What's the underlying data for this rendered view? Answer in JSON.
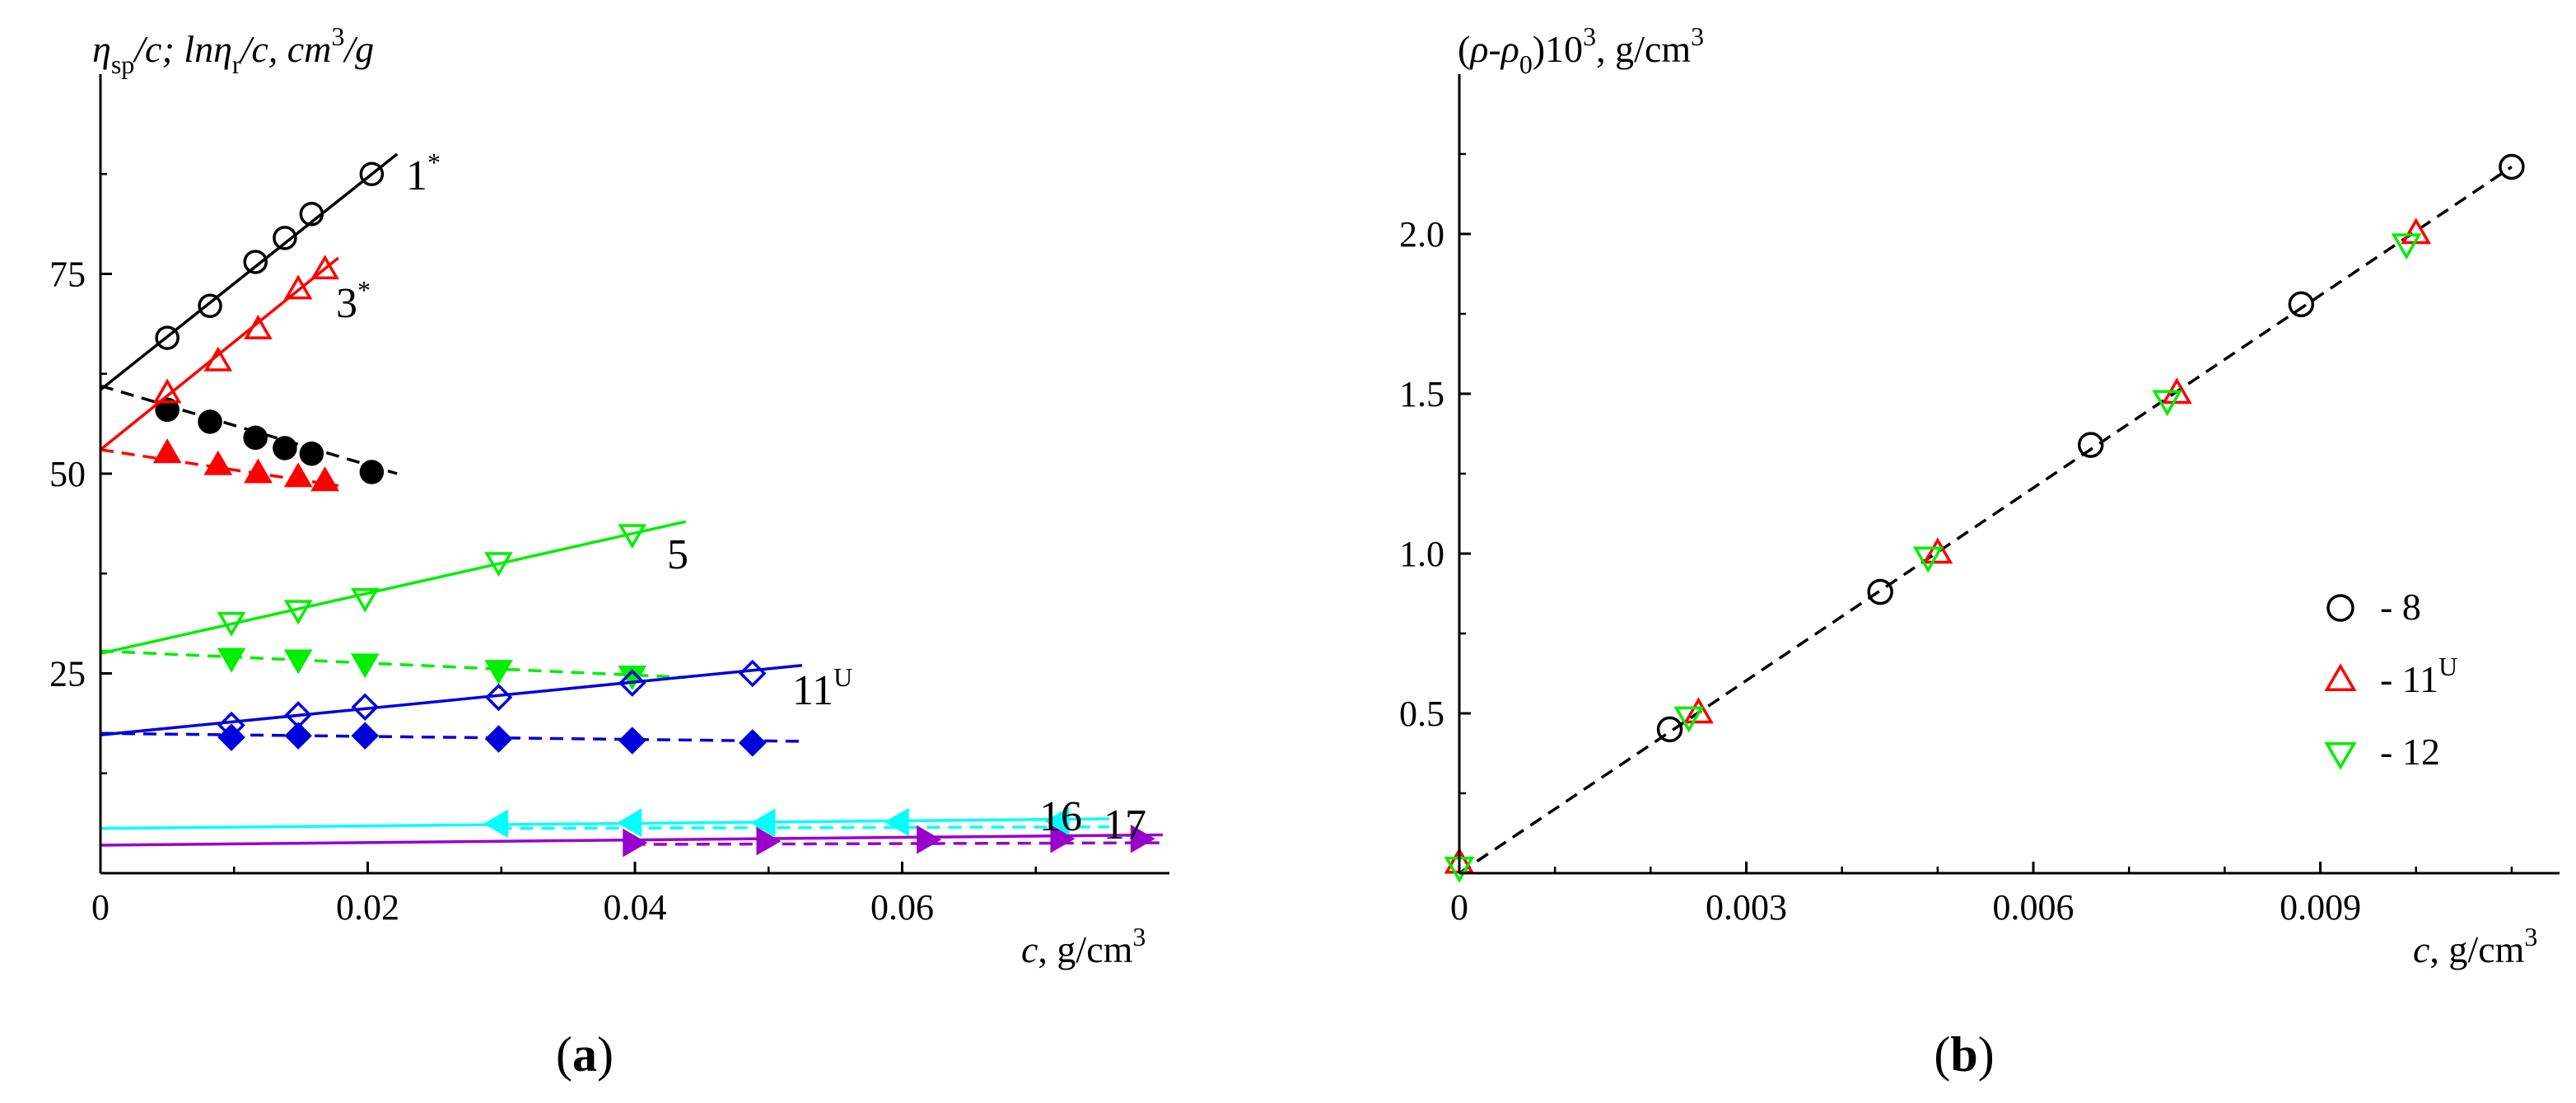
{
  "chart_data": [
    {
      "type": "scatter",
      "panel": "a",
      "panel_label": "(a)",
      "panel_label_parts": [
        "(",
        "a",
        ")"
      ],
      "ylabel": "ηsp/c; lnηr/c, cm3/g",
      "ylabel_parts": {
        "eta1": "η",
        "sp": "sp",
        "mid": "/c; ln",
        "eta2": "η",
        "r": "r",
        "tail": "/c, cm",
        "exp": "3",
        "end": "/g"
      },
      "xlabel": "c, g/cm3",
      "xlabel_parts": {
        "c": "c",
        "unit": ", g/cm",
        "exp": "3"
      },
      "xlim": [
        0,
        0.08
      ],
      "ylim": [
        0,
        100
      ],
      "xticks": [
        0,
        0.02,
        0.04,
        0.06
      ],
      "xtick_labels": [
        "0",
        "0.02",
        "0.04",
        "0.06"
      ],
      "yticks": [
        25,
        50,
        75
      ],
      "ytick_labels": [
        "25",
        "50",
        "75"
      ],
      "series": [
        {
          "name": "1*",
          "label_main": "1",
          "label_sup": "*",
          "kind": "eta_sp",
          "color": "#000000",
          "marker": "circle",
          "filled": false,
          "line": "solid",
          "x": [
            0.005,
            0.0082,
            0.0116,
            0.0138,
            0.0158,
            0.0203
          ],
          "y": [
            67,
            71,
            76.5,
            79.5,
            82.5,
            87.5
          ],
          "fit_x": [
            0,
            0.0222
          ],
          "fit_y": [
            60.5,
            90
          ]
        },
        {
          "name": "1* ln",
          "kind": "ln",
          "color": "#000000",
          "marker": "circle",
          "filled": true,
          "line": "dashed",
          "x": [
            0.005,
            0.0082,
            0.0116,
            0.0138,
            0.0158,
            0.0203
          ],
          "y": [
            58,
            56.5,
            54.5,
            53.2,
            52.5,
            50.2
          ],
          "fit_x": [
            0,
            0.0222
          ],
          "fit_y": [
            61,
            50
          ]
        },
        {
          "name": "3*",
          "label_main": "3",
          "label_sup": "*",
          "kind": "eta_sp",
          "color": "#ff0000",
          "marker": "triangle-up",
          "filled": false,
          "line": "solid",
          "x": [
            0.005,
            0.0088,
            0.0118,
            0.0148,
            0.0168
          ],
          "y": [
            60,
            64,
            68,
            73,
            75.5
          ],
          "fit_x": [
            0,
            0.0178
          ],
          "fit_y": [
            53,
            77
          ]
        },
        {
          "name": "3* ln",
          "kind": "ln",
          "color": "#ff0000",
          "marker": "triangle-up",
          "filled": true,
          "line": "dashed",
          "x": [
            0.005,
            0.0088,
            0.0118,
            0.0148,
            0.0168
          ],
          "y": [
            52.5,
            51,
            50,
            49.5,
            49
          ],
          "fit_x": [
            0,
            0.0178
          ],
          "fit_y": [
            53,
            48.5
          ]
        },
        {
          "name": "5",
          "label_main": "5",
          "label_sup": "",
          "kind": "eta_sp",
          "color": "#00ee00",
          "marker": "triangle-down",
          "filled": false,
          "line": "solid",
          "x": [
            0.0098,
            0.0148,
            0.0198,
            0.0298,
            0.0398
          ],
          "y": [
            31.5,
            33,
            34.5,
            39,
            42.5
          ],
          "fit_x": [
            0,
            0.0438
          ],
          "fit_y": [
            27.5,
            44
          ]
        },
        {
          "name": "5 ln",
          "kind": "ln",
          "color": "#00ee00",
          "marker": "triangle-down",
          "filled": true,
          "line": "dashed",
          "x": [
            0.0098,
            0.0148,
            0.0198,
            0.0298,
            0.0398
          ],
          "y": [
            27,
            26.8,
            26.3,
            25.5,
            24.8
          ],
          "fit_x": [
            0,
            0.0438
          ],
          "fit_y": [
            27.8,
            24.5
          ]
        },
        {
          "name": "11U",
          "label_main": "11",
          "label_sup": "U",
          "kind": "eta_sp",
          "color": "#0000dd",
          "marker": "diamond",
          "filled": false,
          "line": "solid",
          "x": [
            0.0098,
            0.0148,
            0.0198,
            0.0298,
            0.0398,
            0.0488
          ],
          "y": [
            18.5,
            19.8,
            20.8,
            22,
            23.8,
            25
          ],
          "fit_x": [
            0,
            0.0525
          ],
          "fit_y": [
            17.3,
            26
          ]
        },
        {
          "name": "11U ln",
          "kind": "ln",
          "color": "#0000dd",
          "marker": "diamond",
          "filled": true,
          "line": "dashed",
          "x": [
            0.0098,
            0.0148,
            0.0198,
            0.0298,
            0.0398,
            0.0488
          ],
          "y": [
            17,
            17.2,
            17.2,
            16.8,
            16.6,
            16.3
          ],
          "fit_x": [
            0,
            0.0525
          ],
          "fit_y": [
            17.5,
            16.5
          ]
        },
        {
          "name": "16",
          "label_main": "16",
          "label_sup": "",
          "kind": "eta_sp",
          "color": "#00ffff",
          "marker": "triangle-left",
          "filled": true,
          "line": "solid",
          "x": [
            0.0298,
            0.0398,
            0.0498,
            0.0598,
            0.0718
          ],
          "y": [
            6.2,
            6.3,
            6.3,
            6.4,
            6.5
          ],
          "fit_x": [
            0,
            0.0755
          ],
          "fit_y": [
            5.6,
            6.8
          ]
        },
        {
          "name": "16 ln",
          "kind": "ln",
          "color": "#00ffff",
          "marker": "none",
          "filled": true,
          "line": "dashed",
          "x": [],
          "y": [],
          "fit_x": [
            0.0298,
            0.0755
          ],
          "fit_y": [
            5.6,
            5.8
          ]
        },
        {
          "name": "17",
          "label_main": "17",
          "label_sup": "",
          "kind": "eta_sp",
          "color": "#9900cc",
          "marker": "triangle-right",
          "filled": true,
          "line": "solid",
          "x": [
            0.0398,
            0.0498,
            0.0618,
            0.0718,
            0.0778
          ],
          "y": [
            3.8,
            4,
            4.2,
            4.3,
            4.3
          ],
          "fit_x": [
            0,
            0.0795
          ],
          "fit_y": [
            3.5,
            4.8
          ]
        },
        {
          "name": "17 ln",
          "kind": "ln",
          "color": "#9900cc",
          "marker": "none",
          "filled": true,
          "line": "dashed",
          "x": [],
          "y": [],
          "fit_x": [
            0.0398,
            0.0795
          ],
          "fit_y": [
            3.6,
            3.8
          ]
        }
      ]
    },
    {
      "type": "scatter",
      "panel": "b",
      "panel_label": "(b)",
      "panel_label_parts": [
        "(",
        "b",
        ")"
      ],
      "ylabel": "(ρ-ρ0)103, g/cm3",
      "ylabel_parts": {
        "open": "(",
        "rho1": "ρ",
        "dash": "-",
        "rho2": "ρ",
        "sub0": "0",
        "close": ")10",
        "exp1": "3",
        "unit": ", g/cm",
        "exp2": "3"
      },
      "xlabel": "c, g/cm3",
      "xlabel_parts": {
        "c": "c",
        "unit": ", g/cm",
        "exp": "3"
      },
      "xlim": [
        0,
        0.0115
      ],
      "ylim": [
        0,
        2.5
      ],
      "xticks": [
        0,
        0.003,
        0.006,
        0.009
      ],
      "xtick_labels": [
        "0",
        "0.003",
        "0.006",
        "0.009"
      ],
      "yticks": [
        0.5,
        1.0,
        1.5,
        2.0
      ],
      "ytick_labels": [
        "0.5",
        "1.0",
        "1.5",
        "2.0"
      ],
      "fit": {
        "x": [
          0,
          0.011
        ],
        "y": [
          0,
          2.21
        ],
        "line": "dashed",
        "color": "#000000"
      },
      "series": [
        {
          "name": "8",
          "color": "#000000",
          "marker": "circle",
          "filled": false,
          "x": [
            0.0022,
            0.0044,
            0.0066,
            0.0088,
            0.011
          ],
          "y": [
            0.45,
            0.88,
            1.34,
            1.78,
            2.21
          ]
        },
        {
          "name": "11U",
          "color": "#ff0000",
          "marker": "triangle-up",
          "filled": false,
          "x": [
            0,
            0.0025,
            0.005,
            0.0075,
            0.01
          ],
          "y": [
            0.03,
            0.5,
            1.0,
            1.5,
            2.0
          ]
        },
        {
          "name": "12",
          "color": "#00ee00",
          "marker": "triangle-down",
          "filled": false,
          "x": [
            0,
            0.0024,
            0.0049,
            0.0074,
            0.0099
          ],
          "y": [
            0.02,
            0.49,
            0.99,
            1.48,
            1.97
          ]
        }
      ],
      "legend": {
        "position": "bottom-right",
        "entries": [
          {
            "text": "- 8",
            "main": "- 8",
            "sup": "",
            "marker": "circle",
            "color": "#000000"
          },
          {
            "text": "- 11U",
            "main": "- 11",
            "sup": "U",
            "marker": "triangle-up",
            "color": "#ff0000"
          },
          {
            "text": "- 12",
            "main": "- 12",
            "sup": "",
            "marker": "triangle-down",
            "color": "#00ee00"
          }
        ]
      }
    }
  ]
}
